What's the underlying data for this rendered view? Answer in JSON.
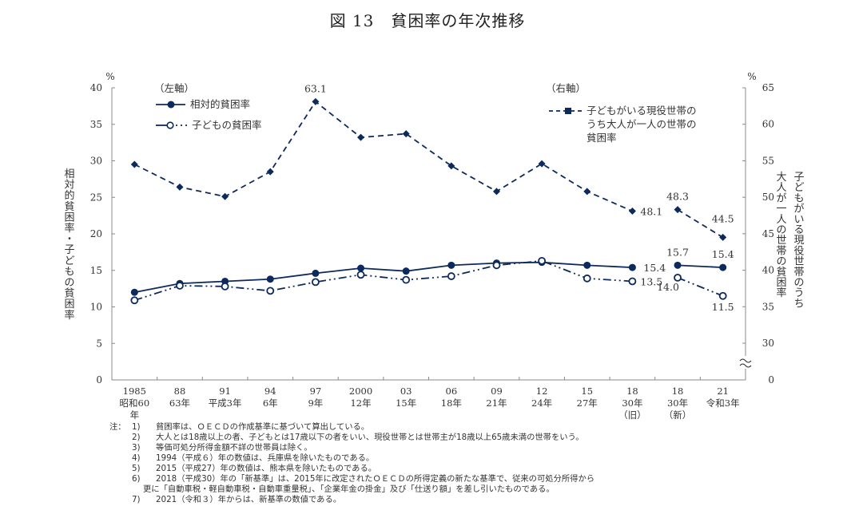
{
  "title": "図 13　貧困率の年次推移",
  "chart_data": {
    "type": "line",
    "title": "図 13　貧困率の年次推移",
    "categories": [
      {
        "line1": "1985",
        "line2": "昭和60",
        "line3": "年"
      },
      {
        "line1": "88",
        "line2": "63年",
        "line3": ""
      },
      {
        "line1": "91",
        "line2": "平成3年",
        "line3": ""
      },
      {
        "line1": "94",
        "line2": "6年",
        "line3": ""
      },
      {
        "line1": "97",
        "line2": "9年",
        "line3": ""
      },
      {
        "line1": "2000",
        "line2": "12年",
        "line3": ""
      },
      {
        "line1": "03",
        "line2": "15年",
        "line3": ""
      },
      {
        "line1": "06",
        "line2": "18年",
        "line3": ""
      },
      {
        "line1": "09",
        "line2": "21年",
        "line3": ""
      },
      {
        "line1": "12",
        "line2": "24年",
        "line3": ""
      },
      {
        "line1": "15",
        "line2": "27年",
        "line3": ""
      },
      {
        "line1": "18",
        "line2": "30年",
        "line3": "（旧）"
      },
      {
        "line1": "18",
        "line2": "30年",
        "line3": "（新）"
      },
      {
        "line1": "21",
        "line2": "令和3年",
        "line3": ""
      }
    ],
    "left_axis": {
      "label": "相対的貧困率・子どもの貧困率",
      "unit": "%",
      "range": [
        0,
        40
      ],
      "ticks": [
        "0",
        "5",
        "10",
        "15",
        "20",
        "25",
        "30",
        "35",
        "40"
      ]
    },
    "right_axis": {
      "label_col1": "子どもがいる現役世帯のうち",
      "label_col2": "大人が一人の世帯の貧困率",
      "unit": "%",
      "range": [
        30,
        65
      ],
      "broken_at_zero": true,
      "ticks": [
        "0",
        "30",
        "35",
        "40",
        "45",
        "50",
        "55",
        "60",
        "65"
      ]
    },
    "legend_left": {
      "heading": "（左軸）",
      "items": [
        "相対的貧困率",
        "子どもの貧困率"
      ]
    },
    "legend_right": {
      "heading": "（右軸）",
      "item_lines": [
        "子どもがいる現役世帯の",
        "うち大人が一人の世帯の",
        "貧困率"
      ]
    },
    "series": [
      {
        "name": "相対的貧困率",
        "axis": "left",
        "style": "solid-filled-circle",
        "segments": [
          [
            0,
            11
          ],
          [
            12,
            13
          ]
        ],
        "values": [
          12.0,
          13.2,
          13.5,
          13.8,
          14.6,
          15.3,
          14.9,
          15.7,
          16.0,
          16.1,
          15.7,
          15.4,
          15.7,
          15.4
        ],
        "labels": {
          "11": "15.4",
          "12": "15.7",
          "13": "15.4"
        }
      },
      {
        "name": "子どもの貧困率",
        "axis": "left",
        "style": "dashdot-open-circle",
        "segments": [
          [
            0,
            11
          ],
          [
            12,
            13
          ]
        ],
        "values": [
          10.9,
          12.9,
          12.8,
          12.2,
          13.4,
          14.4,
          13.7,
          14.2,
          15.7,
          16.3,
          13.9,
          13.5,
          14.0,
          11.5
        ],
        "labels": {
          "11": "13.5",
          "12": "14.0",
          "13": "11.5"
        }
      },
      {
        "name": "子どもがいる現役世帯のうち大人が一人の世帯の貧困率",
        "axis": "right",
        "style": "dashed-filled-diamond",
        "segments": [
          [
            0,
            11
          ],
          [
            12,
            13
          ]
        ],
        "values": [
          54.5,
          51.4,
          50.1,
          53.5,
          63.1,
          58.2,
          58.7,
          54.3,
          50.8,
          54.6,
          50.8,
          48.1,
          48.3,
          44.5
        ],
        "labels": {
          "4": "63.1",
          "11": "48.1",
          "12": "48.3",
          "13": "44.5"
        }
      }
    ],
    "colors": {
      "series": "#0d2a5c",
      "axis": "#888888"
    },
    "grid": false
  },
  "notes": [
    {
      "prefix": "注：",
      "num": "1)",
      "text": "貧困率は、ＯＥＣＤの作成基準に基づいて算出している。"
    },
    {
      "prefix": "",
      "num": "2)",
      "text": "大人とは18歳以上の者、子どもとは17歳以下の者をいい、現役世帯とは世帯主が18歳以上65歳未満の世帯をいう。"
    },
    {
      "prefix": "",
      "num": "3)",
      "text": "等価可処分所得金額不詳の世帯員は除く。"
    },
    {
      "prefix": "",
      "num": "4)",
      "text": "1994（平成６）年の数値は、兵庫県を除いたものである。"
    },
    {
      "prefix": "",
      "num": "5)",
      "text": "2015（平成27）年の数値は、熊本県を除いたものである。"
    },
    {
      "prefix": "",
      "num": "6)",
      "text": "2018（平成30）年の「新基準」は、2015年に改定されたＯＥＣＤの所得定義の新たな基準で、従来の可処分所得から"
    },
    {
      "prefix": "",
      "num": "",
      "text": "更に「自動車税・軽自動車税・自動車重量税」、「企業年金の掛金」及び「仕送り額」を差し引いたものである。",
      "continuation": true
    },
    {
      "prefix": "",
      "num": "7)",
      "text": "2021（令和３）年からは、新基準の数値である。"
    }
  ]
}
